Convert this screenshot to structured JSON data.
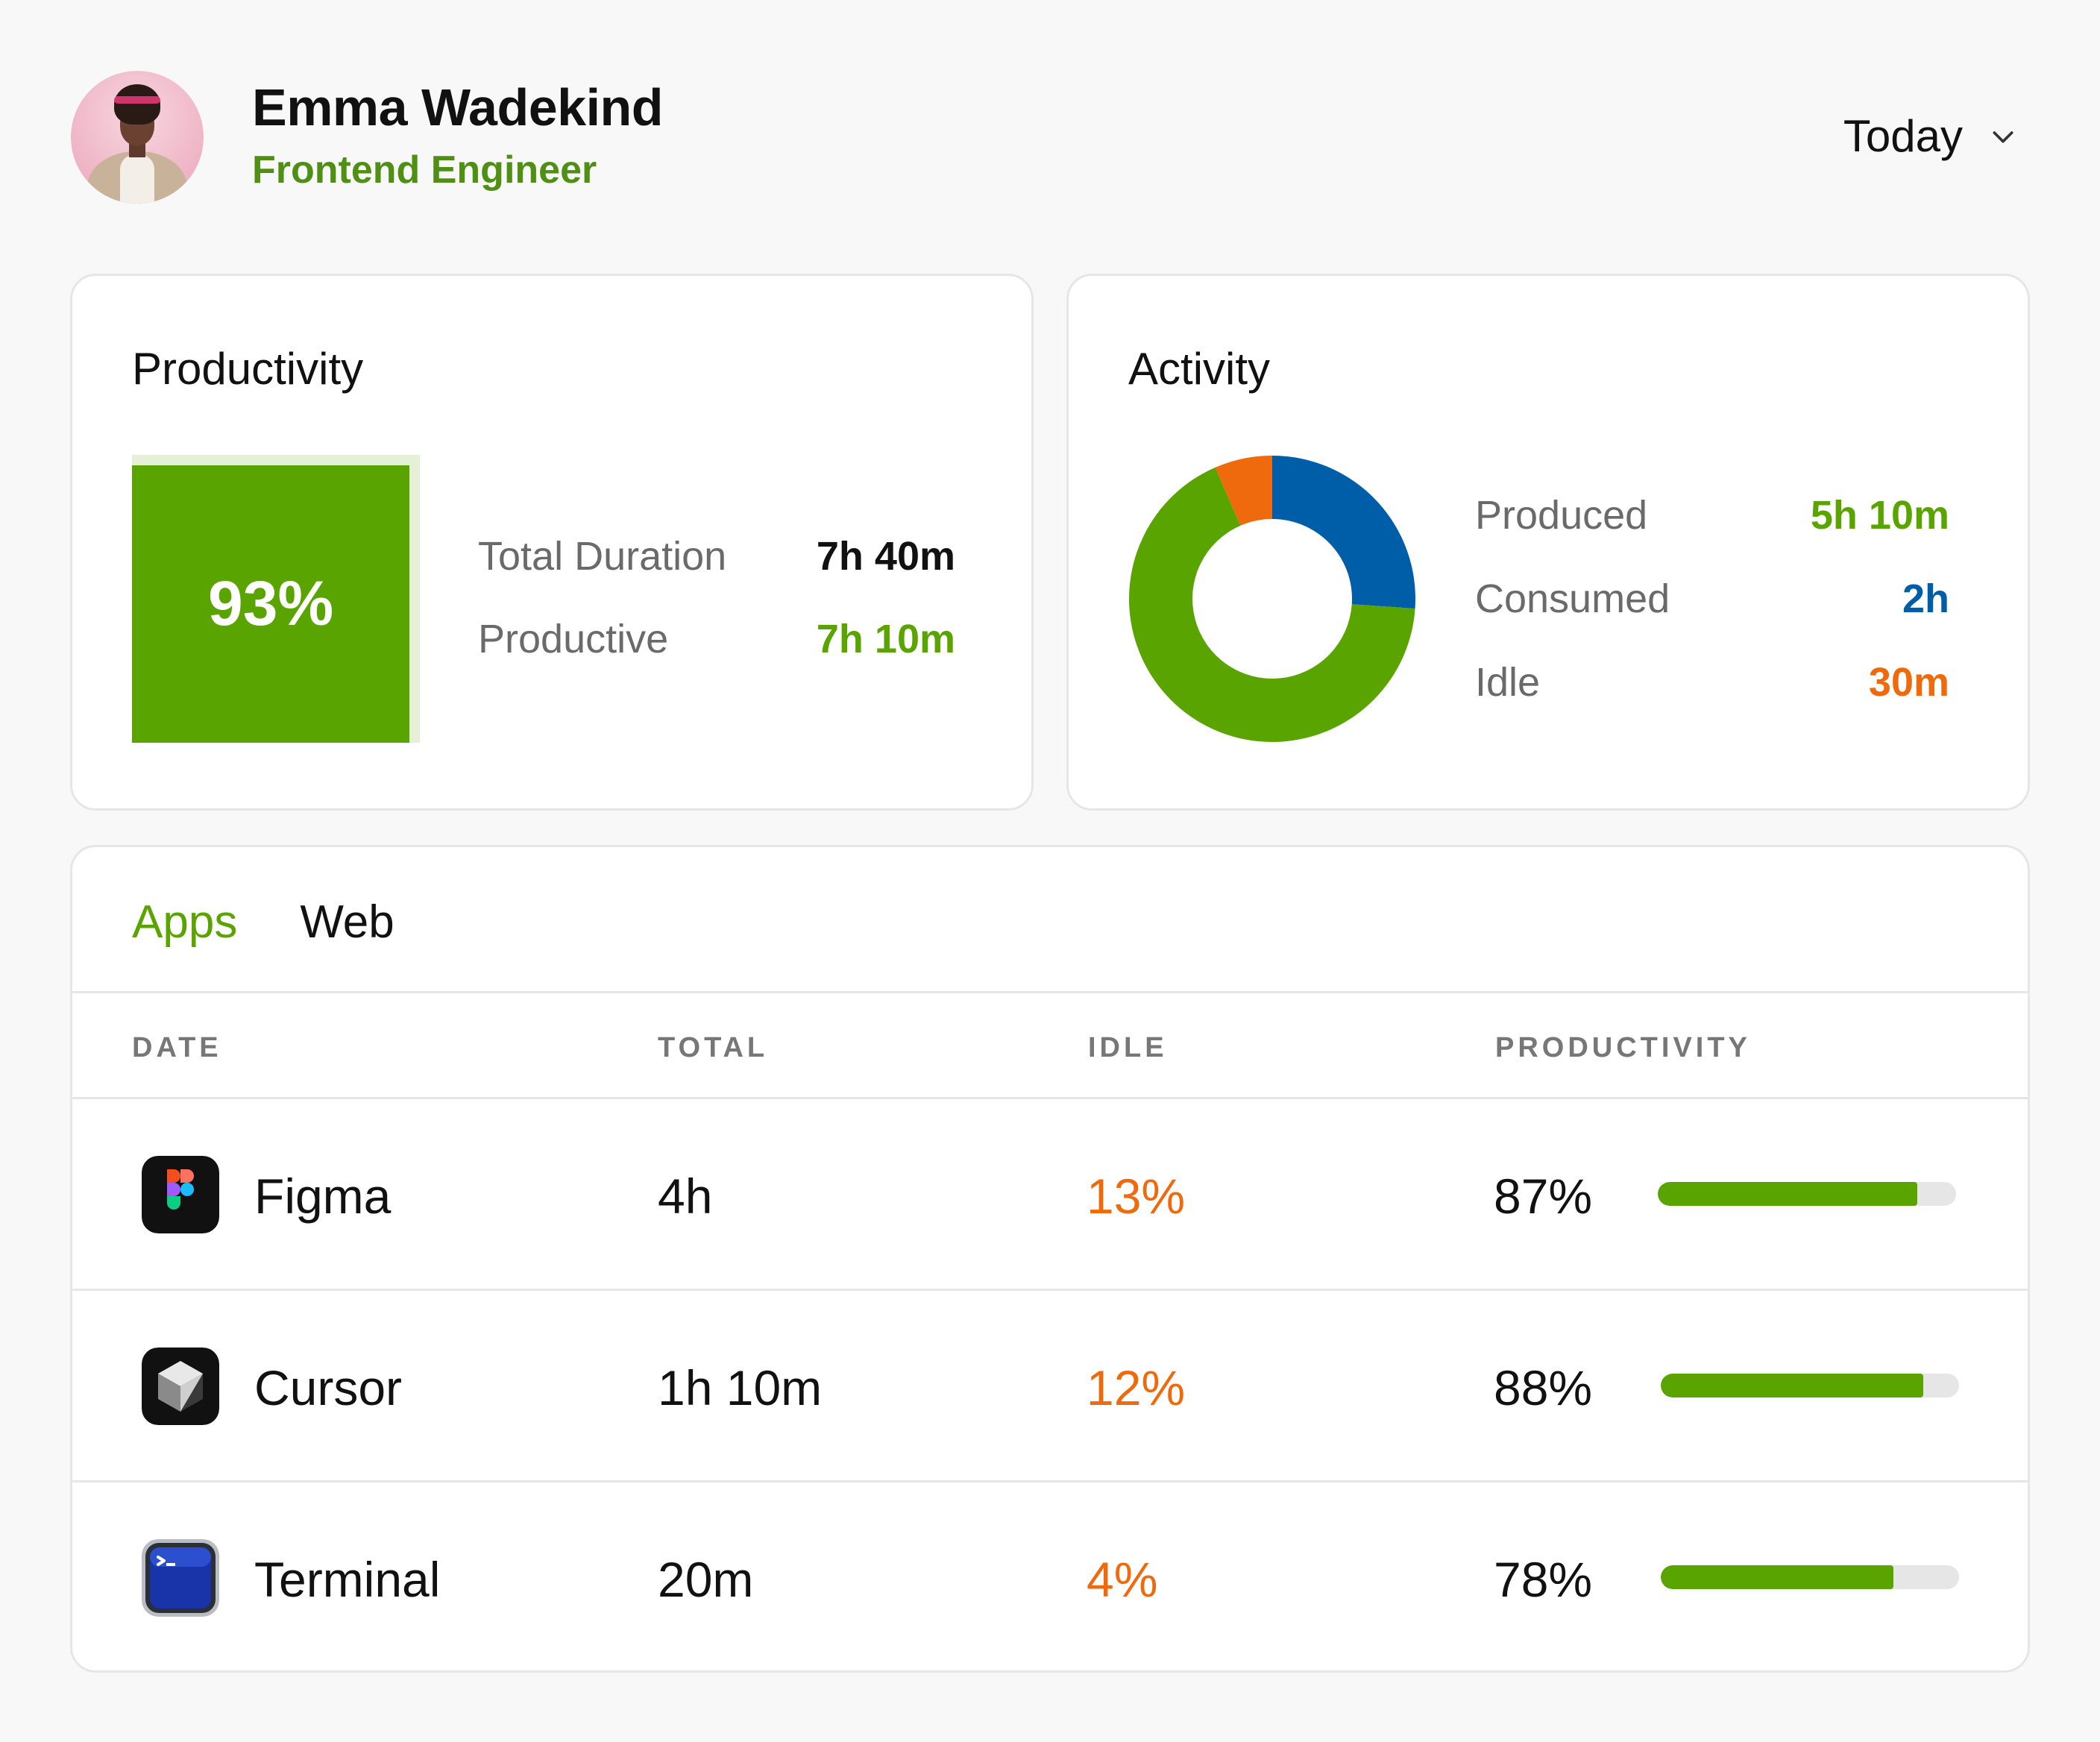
{
  "header": {
    "name": "Emma Wadekind",
    "role": "Frontend Engineer",
    "period": "Today"
  },
  "productivity": {
    "title": "Productivity",
    "score": "93%",
    "score_fraction": 0.93,
    "stats": [
      {
        "label": "Total Duration",
        "value": "7h 40m"
      },
      {
        "label": "Productive",
        "value": "7h 10m"
      }
    ]
  },
  "activity": {
    "title": "Activity",
    "items": [
      {
        "label": "Produced",
        "value": "5h 10m",
        "minutes": 310,
        "color": "#5aa400"
      },
      {
        "label": "Consumed",
        "value": "2h",
        "minutes": 120,
        "color": "#005ea8"
      },
      {
        "label": "Idle",
        "value": "30m",
        "minutes": 30,
        "color": "#ee6a0c"
      }
    ]
  },
  "tabs": [
    {
      "label": "Apps",
      "active": true
    },
    {
      "label": "Web",
      "active": false
    }
  ],
  "table": {
    "columns": [
      "DATE",
      "TOTAL",
      "IDLE",
      "PRODUCTIVITY"
    ],
    "rows": [
      {
        "app": "Figma",
        "icon": "figma-icon",
        "total": "4h",
        "idle": "13%",
        "productivity": "87%",
        "productivity_fraction": 0.87
      },
      {
        "app": "Cursor",
        "icon": "cursor-icon",
        "total": "1h 10m",
        "idle": "12%",
        "productivity": "88%",
        "productivity_fraction": 0.88
      },
      {
        "app": "Terminal",
        "icon": "terminal-icon",
        "total": "20m",
        "idle": "4%",
        "productivity": "78%",
        "productivity_fraction": 0.78
      }
    ]
  },
  "colors": {
    "green": "#5aa400",
    "green_text": "#4f8f14",
    "blue": "#005ea8",
    "orange": "#ee6a0c",
    "light_green": "#e5f0d7"
  }
}
